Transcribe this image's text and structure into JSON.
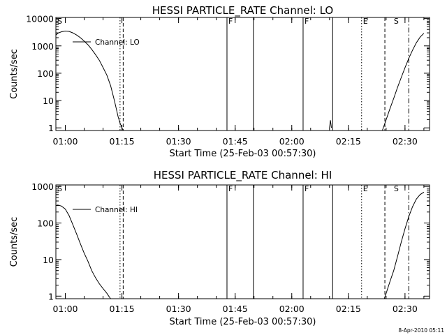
{
  "footer_stamp": "8-Apr-2010 05:11",
  "chart_data": [
    {
      "type": "line",
      "title": "HESSI PARTICLE_RATE Channel: LO",
      "xlabel": "Start Time (25-Feb-03 00:57:30)",
      "ylabel": "Counts/sec",
      "x_ticks": [
        "01:00",
        "01:15",
        "01:30",
        "01:45",
        "02:00",
        "02:15",
        "02:30"
      ],
      "y_ticks": [
        "1",
        "10",
        "100",
        "1000",
        "10000"
      ],
      "yscale": "log",
      "xlim": [
        "00:57:30",
        "02:36:30"
      ],
      "ylim": [
        0.8,
        11000
      ],
      "grid": false,
      "legend": "Channel: LO",
      "legend_position": "top-left",
      "series": [
        {
          "name": "Channel: LO",
          "segments": [
            {
              "x": [
                "00:57:30",
                "00:58:00",
                "00:59:00",
                "01:00:00",
                "01:01:00",
                "01:02:00",
                "01:03:00",
                "01:04:00",
                "01:05:00",
                "01:06:00",
                "01:07:00",
                "01:08:00",
                "01:09:00",
                "01:10:00",
                "01:11:00",
                "01:12:00",
                "01:13:00",
                "01:13:30",
                "01:14:00",
                "01:14:30",
                "01:15:00",
                "01:15:20"
              ],
              "y": [
                2500,
                2900,
                3300,
                3500,
                3400,
                3000,
                2500,
                2000,
                1500,
                1100,
                750,
                480,
                300,
                160,
                85,
                35,
                10,
                5,
                2.5,
                1.5,
                1,
                0.8
              ]
            },
            {
              "x": [
                "02:10:00",
                "02:10:15",
                "02:10:30"
              ],
              "y": [
                1,
                1.9,
                1
              ]
            },
            {
              "x": [
                "02:24:00",
                "02:25:00",
                "02:26:00",
                "02:27:00",
                "02:28:00",
                "02:29:00",
                "02:30:00",
                "02:31:00",
                "02:32:00",
                "02:33:00",
                "02:34:00",
                "02:35:00"
              ],
              "y": [
                0.8,
                2,
                5,
                12,
                30,
                70,
                160,
                350,
                700,
                1300,
                2100,
                2900
              ]
            }
          ]
        }
      ],
      "annotations": [
        {
          "text": "F",
          "x": "01:42:50"
        },
        {
          "text": "F",
          "x": "02:03:00"
        },
        {
          "text": "E",
          "x": "02:18:30"
        },
        {
          "text": "S",
          "x": "02:26:40"
        }
      ]
    },
    {
      "type": "line",
      "title": "HESSI PARTICLE_RATE Channel: HI",
      "xlabel": "Start Time (25-Feb-03 00:57:30)",
      "ylabel": "Counts/sec",
      "x_ticks": [
        "01:00",
        "01:15",
        "01:30",
        "01:45",
        "02:00",
        "02:15",
        "02:30"
      ],
      "y_ticks": [
        "1",
        "10",
        "100",
        "1000"
      ],
      "yscale": "log",
      "xlim": [
        "00:57:30",
        "02:36:30"
      ],
      "ylim": [
        0.85,
        1100
      ],
      "grid": false,
      "legend": "Channel: HI",
      "legend_position": "top-left",
      "series": [
        {
          "name": "Channel: HI",
          "segments": [
            {
              "x": [
                "00:57:30",
                "00:58:00",
                "00:59:00",
                "01:00:00",
                "01:01:00",
                "01:02:00",
                "01:03:00",
                "01:04:00",
                "01:05:00",
                "01:06:00",
                "01:07:00",
                "01:08:00",
                "01:09:00",
                "01:10:00",
                "01:11:00",
                "01:11:30",
                "01:12:00"
              ],
              "y": [
                300,
                310,
                290,
                240,
                160,
                90,
                50,
                27,
                15,
                9,
                5,
                3.2,
                2.2,
                1.6,
                1.2,
                1,
                0.85
              ]
            },
            {
              "x": [
                "02:24:30",
                "02:25:00",
                "02:26:00",
                "02:27:00",
                "02:28:00",
                "02:29:00",
                "02:30:00",
                "02:31:00",
                "02:32:00",
                "02:33:00",
                "02:34:00",
                "02:35:00"
              ],
              "y": [
                0.85,
                1.2,
                2.5,
                5,
                12,
                30,
                70,
                150,
                280,
                450,
                600,
                700
              ]
            }
          ]
        }
      ],
      "annotations": [
        {
          "text": "F",
          "x": "01:42:50"
        },
        {
          "text": "F",
          "x": "02:03:00"
        },
        {
          "text": "E",
          "x": "02:18:30"
        },
        {
          "text": "S",
          "x": "02:26:40"
        }
      ]
    }
  ],
  "vertical_lines": [
    {
      "x": "01:14:30",
      "style": "dotted"
    },
    {
      "x": "01:15:20",
      "style": "dashed"
    },
    {
      "x": "01:42:50",
      "style": "solid"
    },
    {
      "x": "01:49:50",
      "style": "solid"
    },
    {
      "x": "02:03:00",
      "style": "solid"
    },
    {
      "x": "02:10:50",
      "style": "solid"
    },
    {
      "x": "02:18:30",
      "style": "dotted"
    },
    {
      "x": "02:24:40",
      "style": "dashed"
    },
    {
      "x": "02:31:00",
      "style": "dashdot"
    }
  ]
}
